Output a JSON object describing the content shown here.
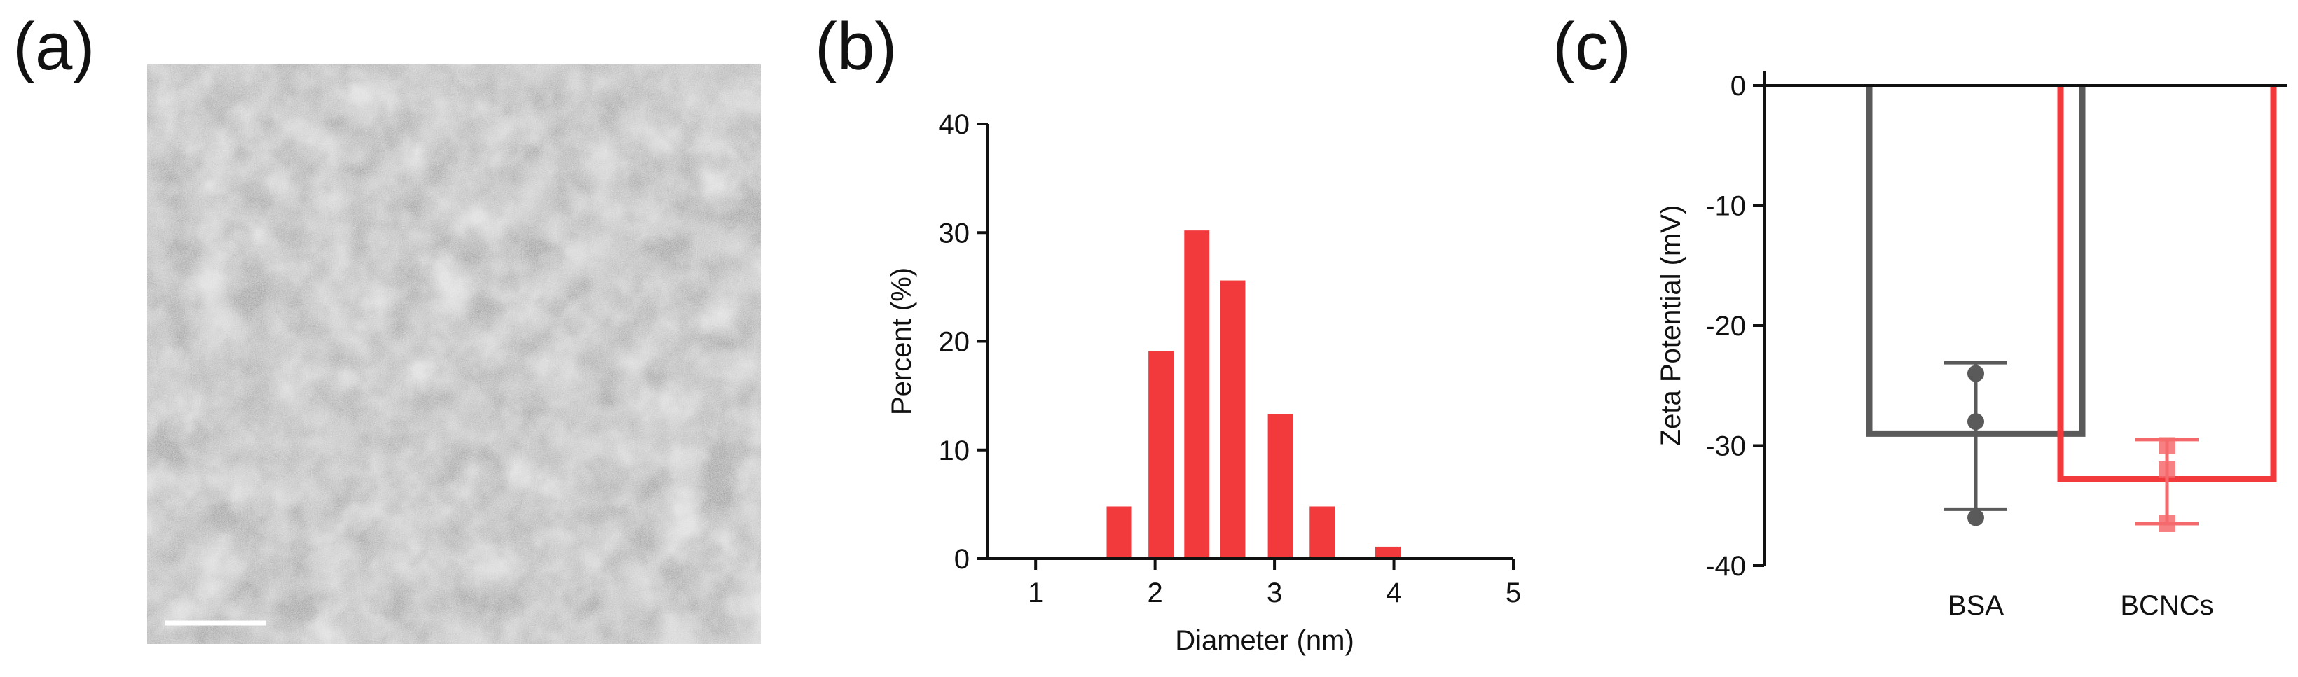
{
  "panels": {
    "a": {
      "label": "(a)",
      "image": "TEM micrograph with scale bar"
    },
    "b": {
      "label": "(b)"
    },
    "c": {
      "label": "(c)"
    }
  },
  "colors": {
    "red": "#f23a3c",
    "gray": "#5a5a5a",
    "red_light": "#f46a6c",
    "axis": "#111111"
  },
  "chart_data": [
    {
      "type": "bar",
      "panel": "b",
      "title": "",
      "xlabel": "Diameter (nm)",
      "ylabel": "Percent (%)",
      "x": [
        1.7,
        2.05,
        2.35,
        2.65,
        3.05,
        3.4,
        3.95
      ],
      "values": [
        4.8,
        19.1,
        30.2,
        25.6,
        13.3,
        4.8,
        1.1
      ],
      "xlim": [
        0.6,
        5
      ],
      "ylim": [
        0,
        40
      ],
      "xticks": [
        "1",
        "2",
        "3",
        "4",
        "5"
      ],
      "yticks": [
        "0",
        "10",
        "20",
        "30",
        "40"
      ]
    },
    {
      "type": "bar",
      "panel": "c",
      "title": "",
      "xlabel": "",
      "ylabel": "Zeta Potential (mV)",
      "categories": [
        "BSA",
        "BCNCs"
      ],
      "values": [
        -29.0,
        -32.8
      ],
      "error": [
        [
          -35.3,
          -23.1
        ],
        [
          -36.5,
          -29.5
        ]
      ],
      "points": [
        [
          -24.0,
          -28.0,
          -36.0
        ],
        [
          -30.0,
          -32.0,
          -36.5
        ]
      ],
      "ylim": [
        -40,
        0
      ],
      "yticks": [
        "0",
        "-10",
        "-20",
        "-30",
        "-40"
      ]
    }
  ]
}
